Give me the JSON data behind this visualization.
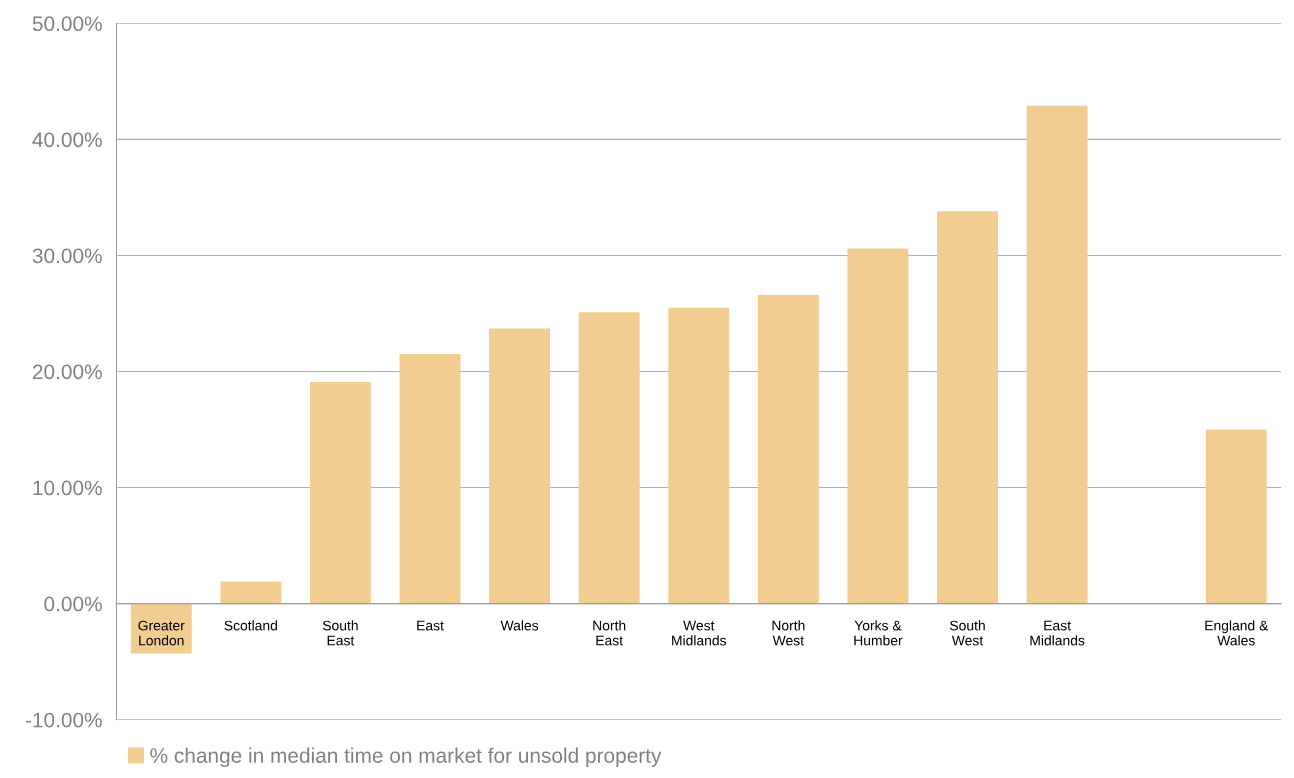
{
  "chart_data": {
    "type": "bar",
    "categories": [
      "Greater\nLondon",
      "Scotland",
      "South\nEast",
      "East",
      "Wales",
      "North\nEast",
      "West\nMidlands",
      "North\nWest",
      "Yorks &\nHumber",
      "South\nWest",
      "East\nMidlands",
      null,
      "England &\nWales"
    ],
    "series": [
      {
        "name": "% change in median time on market for unsold property",
        "color": "#f2cd91",
        "values": [
          -4.3,
          1.9,
          19.1,
          21.5,
          23.7,
          25.1,
          25.5,
          26.6,
          30.6,
          33.8,
          42.9,
          null,
          15.0
        ]
      }
    ],
    "ylim": [
      -10,
      50
    ],
    "yticks": [
      {
        "value": -10,
        "label": "-10.00%"
      },
      {
        "value": 0,
        "label": "0.00%"
      },
      {
        "value": 10,
        "label": "10.00%"
      },
      {
        "value": 20,
        "label": "20.00%"
      },
      {
        "value": 30,
        "label": "30.00%"
      },
      {
        "value": 40,
        "label": "40.00%"
      },
      {
        "value": 50,
        "label": "50.00%"
      }
    ],
    "grid": "y",
    "legend": "bottom left"
  }
}
